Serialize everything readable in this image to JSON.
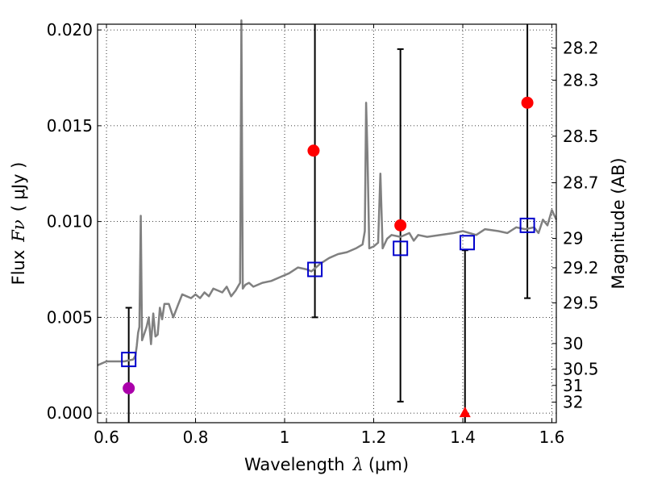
{
  "chart_data": {
    "type": "scatter",
    "title": "",
    "xlabel": "Wavelength",
    "xlabel_symbol": "λ",
    "xlabel_unit": "(μm)",
    "ylabel": "Flux",
    "ylabel_symbol": "Fν",
    "ylabel_unit": "( μJy )",
    "y2label": "Magnitude (AB)",
    "xlim": [
      0.58,
      1.61
    ],
    "ylim": [
      -0.0005,
      0.0203
    ],
    "grid": true,
    "grid_style": "dotted",
    "x_ticks": [
      0.6,
      0.8,
      1.0,
      1.2,
      1.4,
      1.6
    ],
    "x_tick_labels": [
      "0.6",
      "0.8",
      "1",
      "1.2",
      "1.4",
      "1.6"
    ],
    "y_ticks": [
      0.0,
      0.005,
      0.01,
      0.015,
      0.02
    ],
    "y_tick_labels": [
      "0.000",
      "0.005",
      "0.010",
      "0.015",
      "0.020"
    ],
    "mag_ticks": [
      "28.2",
      "28.3",
      "28.5",
      "28.7",
      "29",
      "29.2",
      "29.5",
      "30",
      "30.5",
      "31",
      "32"
    ],
    "colors": {
      "spectrum": "#808080",
      "observed": "#ff0000",
      "extra_point": "#aa00aa",
      "model": "#0000cc",
      "error_bar": "#000000"
    },
    "series": [
      {
        "name": "model spectrum",
        "kind": "line",
        "x": [
          0.58,
          0.6,
          0.62,
          0.64,
          0.66,
          0.665,
          0.668,
          0.671,
          0.674,
          0.677,
          0.68,
          0.69,
          0.695,
          0.7,
          0.705,
          0.71,
          0.715,
          0.72,
          0.725,
          0.73,
          0.74,
          0.75,
          0.76,
          0.765,
          0.77,
          0.78,
          0.79,
          0.8,
          0.81,
          0.82,
          0.83,
          0.84,
          0.85,
          0.86,
          0.87,
          0.88,
          0.89,
          0.895,
          0.9,
          0.903,
          0.906,
          0.909,
          0.912,
          0.92,
          0.93,
          0.95,
          0.97,
          0.99,
          1.01,
          1.03,
          1.05,
          1.06,
          1.08,
          1.1,
          1.12,
          1.14,
          1.16,
          1.175,
          1.18,
          1.183,
          1.186,
          1.19,
          1.2,
          1.21,
          1.215,
          1.22,
          1.23,
          1.24,
          1.26,
          1.28,
          1.29,
          1.3,
          1.32,
          1.35,
          1.38,
          1.4,
          1.43,
          1.45,
          1.48,
          1.5,
          1.52,
          1.54,
          1.56,
          1.57,
          1.58,
          1.59,
          1.6,
          1.61
        ],
        "y": [
          0.0025,
          0.0027,
          0.0027,
          0.0027,
          0.0028,
          0.003,
          0.0035,
          0.0042,
          0.0045,
          0.0103,
          0.0038,
          0.0045,
          0.005,
          0.0036,
          0.0052,
          0.004,
          0.0041,
          0.0055,
          0.0049,
          0.0057,
          0.0057,
          0.005,
          0.0056,
          0.0059,
          0.0062,
          0.0061,
          0.006,
          0.0062,
          0.006,
          0.0063,
          0.0061,
          0.0065,
          0.0064,
          0.0063,
          0.0066,
          0.0061,
          0.0064,
          0.0066,
          0.0068,
          0.0205,
          0.0065,
          0.0066,
          0.0067,
          0.0068,
          0.0066,
          0.0068,
          0.0069,
          0.0071,
          0.0073,
          0.0076,
          0.0075,
          0.0074,
          0.0078,
          0.0081,
          0.0083,
          0.0084,
          0.0086,
          0.0088,
          0.0095,
          0.0162,
          0.0135,
          0.0086,
          0.0087,
          0.0089,
          0.0125,
          0.0086,
          0.0091,
          0.0093,
          0.0092,
          0.0094,
          0.009,
          0.0093,
          0.0092,
          0.0093,
          0.0094,
          0.0095,
          0.0093,
          0.0096,
          0.0095,
          0.0094,
          0.0097,
          0.0096,
          0.0097,
          0.0094,
          0.0101,
          0.0098,
          0.0106,
          0.0101
        ]
      },
      {
        "name": "observed photometry",
        "kind": "points",
        "marker": "circle",
        "x": [
          1.065,
          1.26,
          1.545
        ],
        "y": [
          0.0137,
          0.0098,
          0.0162
        ]
      },
      {
        "name": "extra photometry",
        "kind": "points",
        "marker": "circle",
        "x": [
          0.65
        ],
        "y": [
          0.0013
        ]
      },
      {
        "name": "upper limit",
        "kind": "points",
        "marker": "triangle",
        "x": [
          1.405
        ],
        "y": [
          0.0
        ]
      },
      {
        "name": "model synthetic photometry",
        "kind": "points",
        "marker": "square",
        "x": [
          0.65,
          1.068,
          1.26,
          1.41,
          1.545
        ],
        "y": [
          0.0028,
          0.0075,
          0.0086,
          0.0089,
          0.0098
        ]
      }
    ],
    "error_bars": [
      {
        "x": 0.65,
        "low": -0.0005,
        "high": 0.0055
      },
      {
        "x": 1.068,
        "low": 0.005,
        "high": 0.0203
      },
      {
        "x": 1.26,
        "low": 0.0006,
        "high": 0.019
      },
      {
        "x": 1.405,
        "low": -0.0005,
        "high": 0.0085
      },
      {
        "x": 1.545,
        "low": 0.006,
        "high": 0.0203
      }
    ]
  }
}
